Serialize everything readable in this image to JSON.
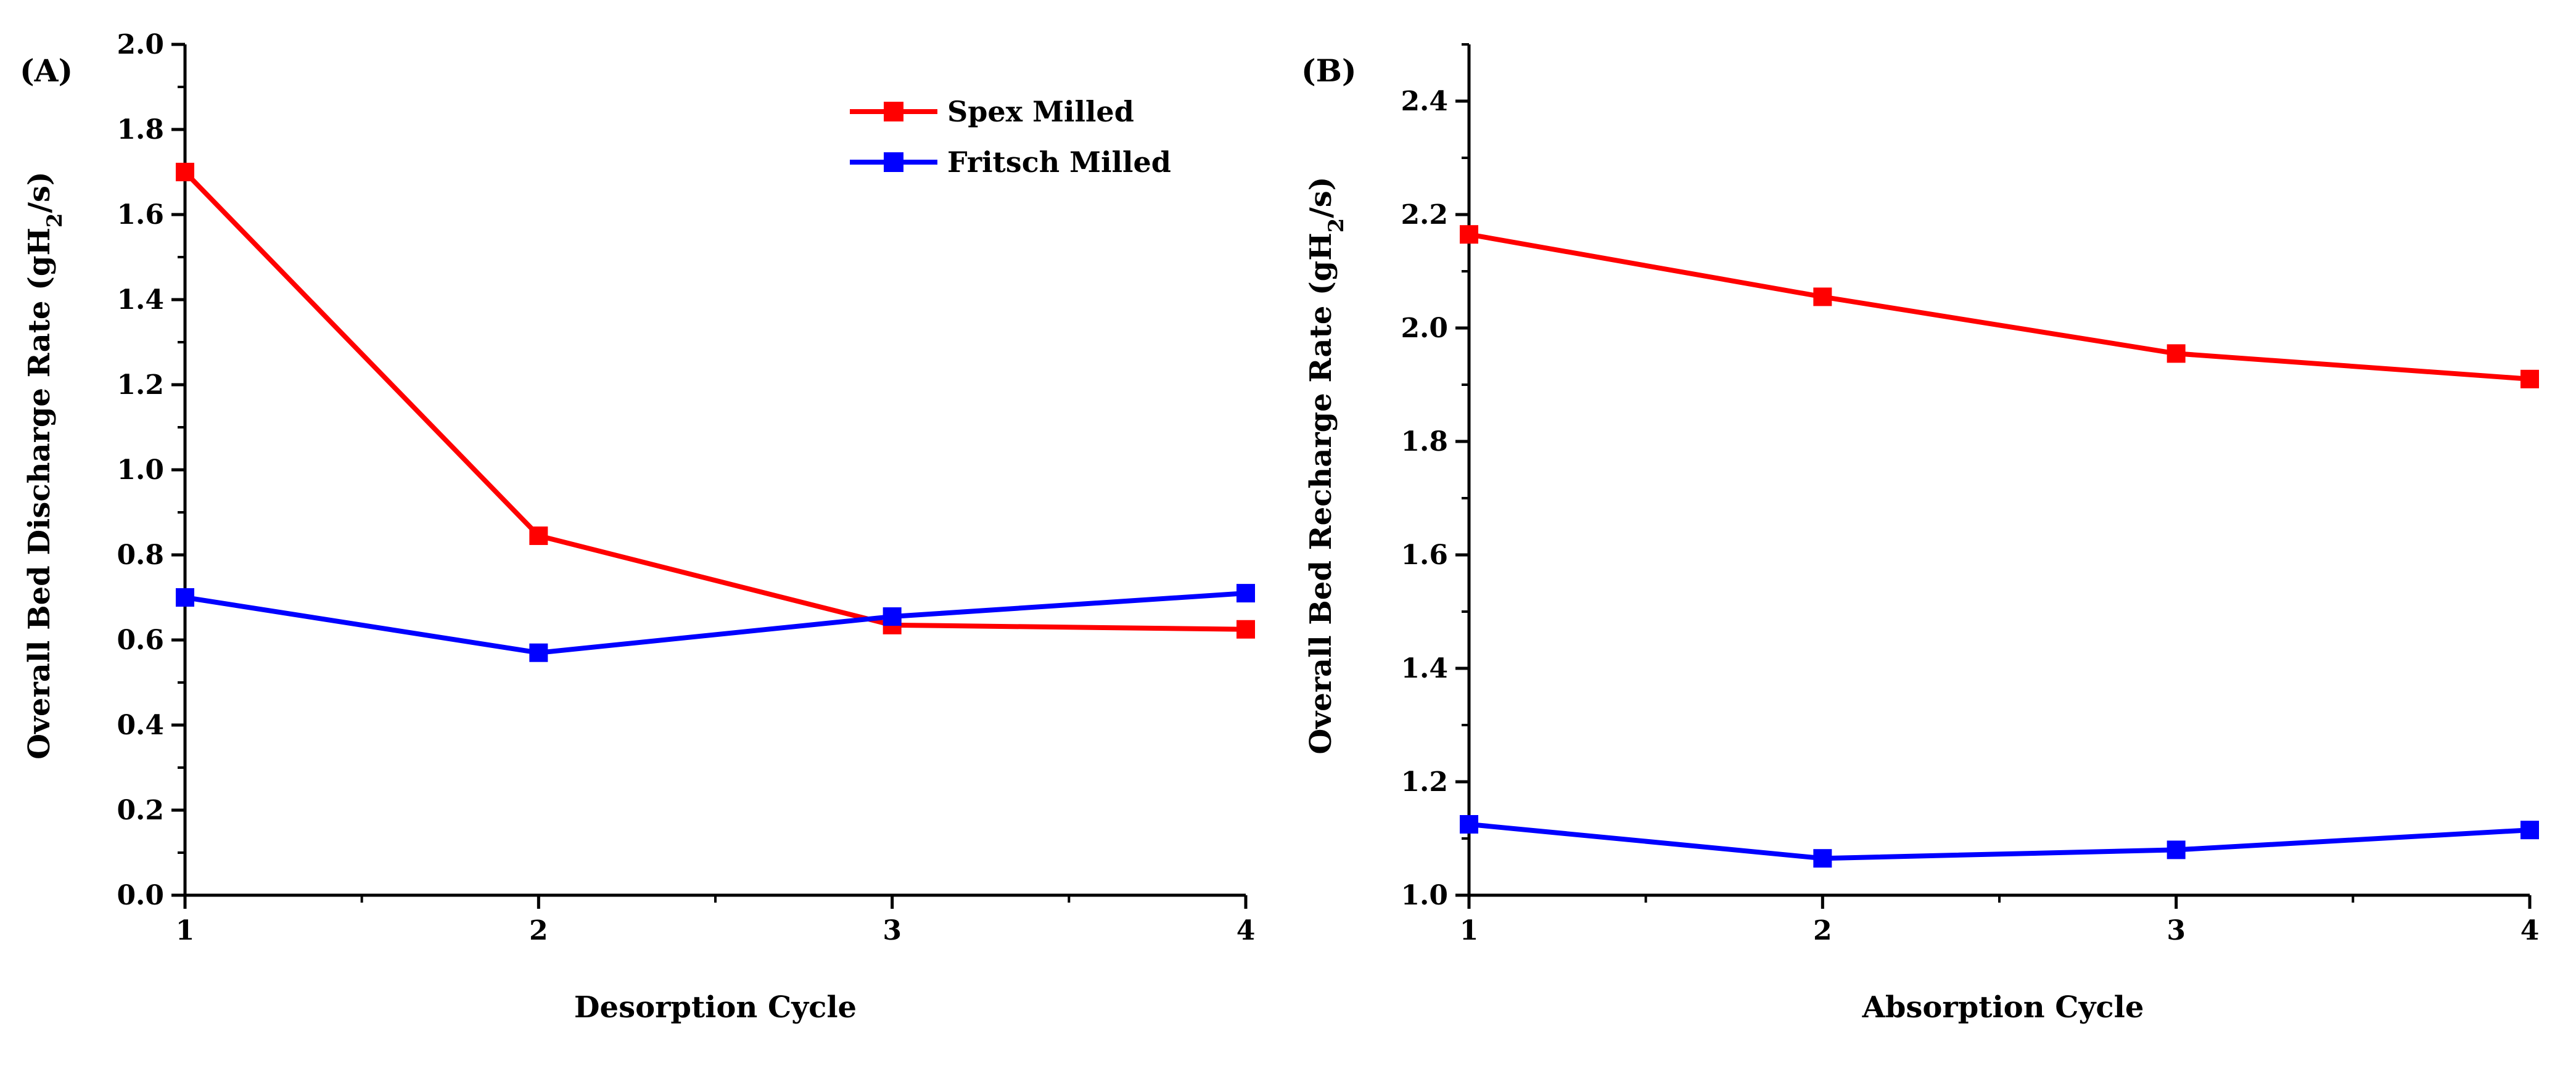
{
  "chart_data": [
    {
      "type": "line",
      "panel_label": "(A)",
      "title": "",
      "xlabel": "Desorption Cycle",
      "ylabel_main": "Overall Bed Discharge Rate (gH",
      "ylabel_sub": "2",
      "ylabel_end": "/s)",
      "x": [
        1,
        2,
        3,
        4
      ],
      "xlim": [
        1,
        4
      ],
      "ylim": [
        0.0,
        2.0
      ],
      "x_ticks": [
        "1",
        "2",
        "3",
        "4"
      ],
      "y_ticks": [
        "0.0",
        "0.2",
        "0.4",
        "0.6",
        "0.8",
        "1.0",
        "1.2",
        "1.4",
        "1.6",
        "1.8",
        "2.0"
      ],
      "series": [
        {
          "name": "Spex Milled",
          "color": "#ff0000",
          "values": [
            1.7,
            0.845,
            0.635,
            0.625
          ]
        },
        {
          "name": "Fritsch Milled",
          "color": "#0000ff",
          "values": [
            0.7,
            0.57,
            0.655,
            0.71
          ]
        }
      ],
      "legend": "top-right"
    },
    {
      "type": "line",
      "panel_label": "(B)",
      "title": "",
      "xlabel": "Absorption Cycle",
      "ylabel_main": "Overall Bed Recharge Rate (gH",
      "ylabel_sub": "2",
      "ylabel_end": "/s)",
      "x": [
        1,
        2,
        3,
        4
      ],
      "xlim": [
        1,
        4
      ],
      "ylim": [
        1.0,
        2.5
      ],
      "x_ticks": [
        "1",
        "2",
        "3",
        "4"
      ],
      "y_ticks": [
        "1.0",
        "1.2",
        "1.4",
        "1.6",
        "1.8",
        "2.0",
        "2.2",
        "2.4"
      ],
      "series": [
        {
          "name": "Spex Milled",
          "color": "#ff0000",
          "values": [
            2.165,
            2.055,
            1.955,
            1.91
          ]
        },
        {
          "name": "Fritsch Milled",
          "color": "#0000ff",
          "values": [
            1.125,
            1.065,
            1.08,
            1.115
          ]
        }
      ]
    }
  ]
}
